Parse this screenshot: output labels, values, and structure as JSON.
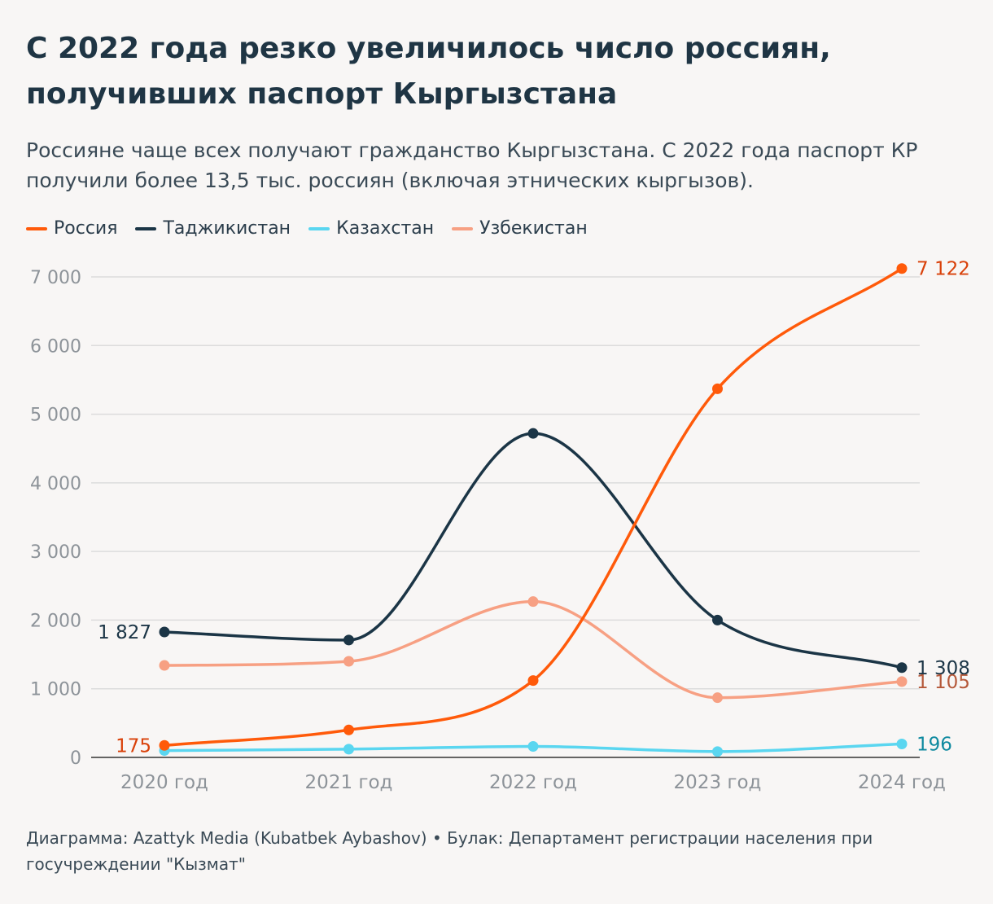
{
  "header": {
    "title": "С 2022 года резко увеличилось число россиян, получивших паспорт Кыргызстана",
    "subtitle": "Россияне чаще всех получают гражданство Кыргызстана. С 2022 года паспорт КР получили более 13,5 тыс. россиян (включая этнических кыргызов)."
  },
  "footer": {
    "source": "Диаграмма: Azattyk Media (Kubatbek Aybashov) • Булак: Департамент регистрации населения при госучреждении \"Кызмат\""
  },
  "chart_data": {
    "type": "line",
    "title": "С 2022 года резко увеличилось число россиян, получивших паспорт Кыргызстана",
    "xlabel": "",
    "ylabel": "",
    "ylim": [
      0,
      7000
    ],
    "yticks": [
      0,
      1000,
      2000,
      3000,
      4000,
      5000,
      6000,
      7000
    ],
    "ytick_labels": [
      "0",
      "1 000",
      "2 000",
      "3 000",
      "4 000",
      "5 000",
      "6 000",
      "7 000"
    ],
    "categories": [
      "2020 год",
      "2021 год",
      "2022 год",
      "2023 год",
      "2024 год"
    ],
    "grid": true,
    "legend_position": "top-left",
    "series": [
      {
        "name": "Россия",
        "color": "#ff5a0a",
        "label_color": "#d9410a",
        "values": [
          175,
          400,
          1120,
          5370,
          7122
        ],
        "labels": [
          {
            "index": 0,
            "text": "175",
            "side": "left"
          },
          {
            "index": 4,
            "text": "7 122",
            "side": "right"
          }
        ]
      },
      {
        "name": "Таджикистан",
        "color": "#1b3546",
        "label_color": "#1b3546",
        "values": [
          1827,
          1710,
          4720,
          2000,
          1308
        ],
        "labels": [
          {
            "index": 0,
            "text": "1 827",
            "side": "left"
          },
          {
            "index": 4,
            "text": "1 308",
            "side": "right"
          }
        ]
      },
      {
        "name": "Казахстан",
        "color": "#5ad6f0",
        "label_color": "#0f8aa0",
        "values": [
          100,
          120,
          160,
          85,
          196
        ],
        "labels": [
          {
            "index": 4,
            "text": "196",
            "side": "right"
          }
        ]
      },
      {
        "name": "Узбекистан",
        "color": "#f7a083",
        "label_color": "#b5593a",
        "values": [
          1340,
          1400,
          2270,
          870,
          1105
        ],
        "labels": [
          {
            "index": 4,
            "text": "1 105",
            "side": "right"
          }
        ]
      }
    ]
  }
}
